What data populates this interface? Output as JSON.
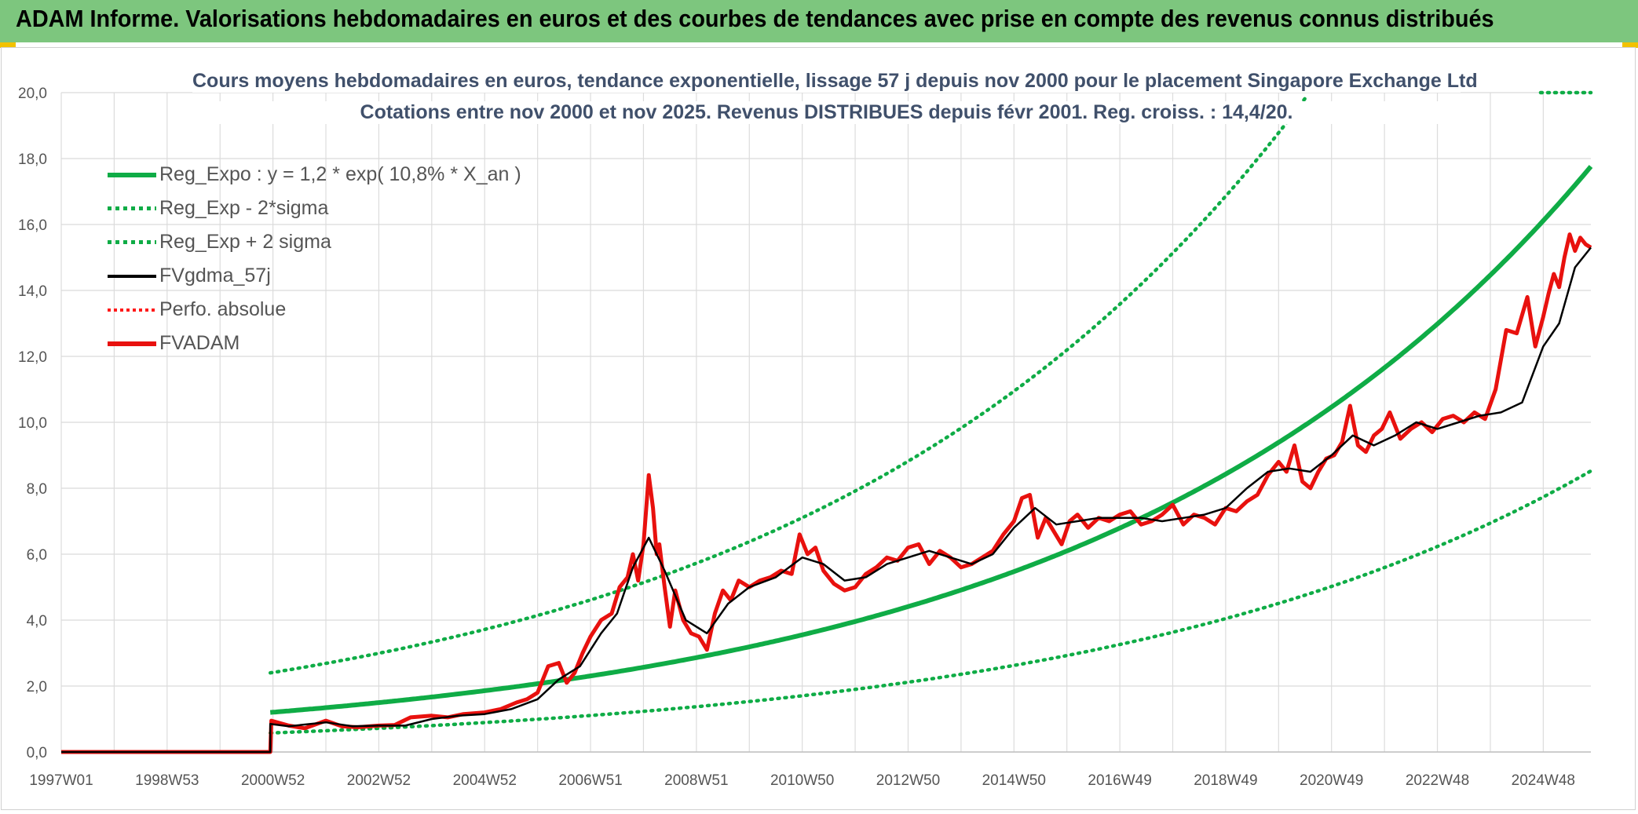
{
  "header": {
    "title": "ADAM Informe. Valorisations hebdomadaires en euros et des courbes de tendances avec prise en compte des revenus connus distribués",
    "background": "#7dc67e"
  },
  "chart_data": {
    "type": "line",
    "title": "Cours moyens hebdomadaires en euros, tendance exponentielle, lissage 57 j depuis nov 2000 pour le placement Singapore Exchange Ltd",
    "subtitle": "Cotations entre nov 2000 et nov 2025. Revenus DISTRIBUES depuis févr 2001. Reg. croiss. : 14,4/20.",
    "xlabel": "",
    "ylabel": "",
    "ylim": [
      0,
      20
    ],
    "xlim": [
      1997.0,
      2025.9
    ],
    "grid": true,
    "legend_position": "top-left",
    "y_ticks": [
      "0,0",
      "2,0",
      "4,0",
      "6,0",
      "8,0",
      "10,0",
      "12,0",
      "14,0",
      "16,0",
      "18,0",
      "20,0"
    ],
    "x_ticks": [
      {
        "label": "1997W01",
        "x": 1997.0
      },
      {
        "label": "1998W53",
        "x": 1999.0
      },
      {
        "label": "2000W52",
        "x": 2001.0
      },
      {
        "label": "2002W52",
        "x": 2003.0
      },
      {
        "label": "2004W52",
        "x": 2005.0
      },
      {
        "label": "2006W51",
        "x": 2007.0
      },
      {
        "label": "2008W51",
        "x": 2009.0
      },
      {
        "label": "2010W50",
        "x": 2011.0
      },
      {
        "label": "2012W50",
        "x": 2013.0
      },
      {
        "label": "2014W50",
        "x": 2015.0
      },
      {
        "label": "2016W49",
        "x": 2017.0
      },
      {
        "label": "2018W49",
        "x": 2019.0
      },
      {
        "label": "2020W49",
        "x": 2021.0
      },
      {
        "label": "2022W48",
        "x": 2023.0
      },
      {
        "label": "2024W48",
        "x": 2025.0
      }
    ],
    "series": [
      {
        "name": "Reg_Expo : y = 1,2 * exp( 10,8% *  X_an )",
        "style": "solid",
        "color": "#0fac46",
        "formula": {
          "a": 1.2,
          "rate": 0.108,
          "x0": 2000.95,
          "x1": 2025.9,
          "factor": 1.0
        }
      },
      {
        "name": "Reg_Exp - 2*sigma",
        "style": "dotted",
        "color": "#0fac46",
        "formula": {
          "a": 1.2,
          "rate": 0.108,
          "x0": 2000.95,
          "x1": 2025.9,
          "factor": 0.48
        }
      },
      {
        "name": "Reg_Exp + 2 sigma",
        "style": "dotted",
        "color": "#0fac46",
        "formula": {
          "a": 1.2,
          "rate": 0.108,
          "x0": 2000.95,
          "x1": 2025.9,
          "factor": 2.0
        }
      },
      {
        "name": "FVgdma_57j",
        "style": "solid",
        "color": "#000000",
        "x": [
          1997.0,
          2000.95,
          2000.95,
          2001.3,
          2002.0,
          2002.5,
          2003.0,
          2003.5,
          2004.0,
          2004.5,
          2005.0,
          2005.5,
          2006.0,
          2006.4,
          2006.8,
          2007.2,
          2007.5,
          2007.8,
          2008.1,
          2008.4,
          2008.8,
          2009.2,
          2009.6,
          2010.0,
          2010.5,
          2011.0,
          2011.4,
          2011.8,
          2012.2,
          2012.6,
          2013.0,
          2013.4,
          2013.8,
          2014.2,
          2014.6,
          2015.0,
          2015.4,
          2015.8,
          2016.2,
          2016.6,
          2017.0,
          2017.4,
          2017.8,
          2018.2,
          2018.6,
          2019.0,
          2019.4,
          2019.8,
          2020.2,
          2020.6,
          2021.0,
          2021.4,
          2021.8,
          2022.2,
          2022.6,
          2023.0,
          2023.4,
          2023.8,
          2024.2,
          2024.6,
          2025.0,
          2025.3,
          2025.6,
          2025.9
        ],
        "values": [
          0.0,
          0.0,
          0.85,
          0.78,
          0.9,
          0.78,
          0.8,
          0.8,
          1.0,
          1.1,
          1.15,
          1.3,
          1.6,
          2.2,
          2.6,
          3.6,
          4.2,
          5.6,
          6.5,
          5.5,
          4.0,
          3.6,
          4.5,
          5.0,
          5.3,
          5.9,
          5.7,
          5.2,
          5.3,
          5.7,
          5.9,
          6.1,
          5.9,
          5.7,
          6.0,
          6.8,
          7.4,
          6.9,
          7.0,
          7.1,
          7.1,
          7.1,
          7.0,
          7.1,
          7.2,
          7.4,
          8.0,
          8.5,
          8.6,
          8.5,
          9.0,
          9.6,
          9.3,
          9.6,
          10.0,
          9.8,
          10.0,
          10.2,
          10.3,
          10.6,
          12.3,
          13.0,
          14.7,
          15.3
        ]
      },
      {
        "name": "Perfo. absolue",
        "style": "dotted",
        "color": "#ff1a1a",
        "x": [],
        "values": []
      },
      {
        "name": "FVADAM",
        "style": "solid",
        "color": "#e8110e",
        "x": [
          1997.0,
          2000.95,
          2000.97,
          2001.3,
          2001.6,
          2002.0,
          2002.3,
          2002.6,
          2003.0,
          2003.3,
          2003.6,
          2004.0,
          2004.3,
          2004.6,
          2005.0,
          2005.3,
          2005.6,
          2005.8,
          2006.0,
          2006.2,
          2006.4,
          2006.55,
          2006.7,
          2006.85,
          2007.0,
          2007.2,
          2007.4,
          2007.55,
          2007.7,
          2007.8,
          2007.9,
          2008.0,
          2008.1,
          2008.18,
          2008.25,
          2008.3,
          2008.4,
          2008.5,
          2008.6,
          2008.75,
          2008.9,
          2009.05,
          2009.2,
          2009.35,
          2009.5,
          2009.65,
          2009.8,
          2010.0,
          2010.2,
          2010.4,
          2010.6,
          2010.8,
          2010.95,
          2011.1,
          2011.25,
          2011.4,
          2011.6,
          2011.8,
          2012.0,
          2012.2,
          2012.4,
          2012.6,
          2012.8,
          2013.0,
          2013.2,
          2013.4,
          2013.6,
          2013.8,
          2014.0,
          2014.2,
          2014.4,
          2014.6,
          2014.8,
          2015.0,
          2015.15,
          2015.3,
          2015.45,
          2015.6,
          2015.75,
          2015.9,
          2016.05,
          2016.2,
          2016.4,
          2016.6,
          2016.8,
          2017.0,
          2017.2,
          2017.4,
          2017.6,
          2017.8,
          2018.0,
          2018.2,
          2018.4,
          2018.6,
          2018.8,
          2019.0,
          2019.2,
          2019.4,
          2019.6,
          2019.8,
          2020.0,
          2020.15,
          2020.3,
          2020.45,
          2020.6,
          2020.75,
          2020.9,
          2021.05,
          2021.2,
          2021.35,
          2021.5,
          2021.65,
          2021.8,
          2021.95,
          2022.1,
          2022.3,
          2022.5,
          2022.7,
          2022.9,
          2023.1,
          2023.3,
          2023.5,
          2023.7,
          2023.9,
          2024.1,
          2024.3,
          2024.5,
          2024.7,
          2024.85,
          2025.0,
          2025.1,
          2025.2,
          2025.3,
          2025.4,
          2025.5,
          2025.6,
          2025.7,
          2025.8,
          2025.9
        ],
        "values": [
          0.0,
          0.0,
          0.95,
          0.8,
          0.72,
          0.95,
          0.78,
          0.75,
          0.8,
          0.82,
          1.05,
          1.1,
          1.05,
          1.15,
          1.2,
          1.3,
          1.5,
          1.6,
          1.8,
          2.6,
          2.7,
          2.1,
          2.4,
          3.0,
          3.5,
          4.0,
          4.2,
          5.0,
          5.3,
          6.0,
          5.2,
          6.3,
          8.4,
          7.4,
          6.0,
          6.3,
          5.0,
          3.8,
          4.9,
          4.0,
          3.6,
          3.5,
          3.1,
          4.2,
          4.9,
          4.6,
          5.2,
          5.0,
          5.2,
          5.3,
          5.5,
          5.4,
          6.6,
          6.0,
          6.2,
          5.5,
          5.1,
          4.9,
          5.0,
          5.4,
          5.6,
          5.9,
          5.8,
          6.2,
          6.3,
          5.7,
          6.1,
          5.9,
          5.6,
          5.7,
          5.9,
          6.1,
          6.6,
          7.0,
          7.7,
          7.8,
          6.5,
          7.1,
          6.7,
          6.3,
          7.0,
          7.2,
          6.8,
          7.1,
          7.0,
          7.2,
          7.3,
          6.9,
          7.0,
          7.2,
          7.5,
          6.9,
          7.2,
          7.1,
          6.9,
          7.4,
          7.3,
          7.6,
          7.8,
          8.4,
          8.8,
          8.5,
          9.3,
          8.2,
          8.0,
          8.5,
          8.9,
          9.0,
          9.4,
          10.5,
          9.3,
          9.1,
          9.6,
          9.8,
          10.3,
          9.5,
          9.8,
          10.0,
          9.7,
          10.1,
          10.2,
          10.0,
          10.3,
          10.1,
          11.0,
          12.8,
          12.7,
          13.8,
          12.3,
          13.2,
          13.9,
          14.5,
          14.1,
          15.0,
          15.7,
          15.2,
          15.6,
          15.4,
          15.3
        ]
      }
    ]
  }
}
